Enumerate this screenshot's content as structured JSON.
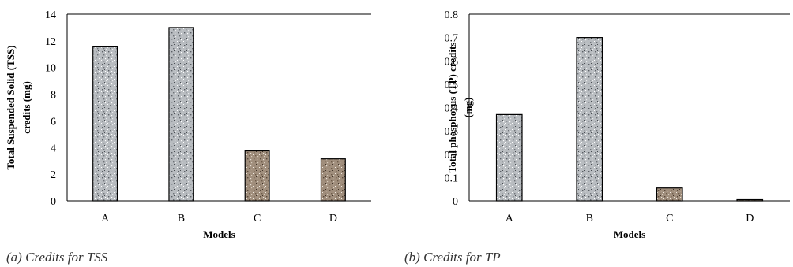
{
  "chart_data": [
    {
      "type": "bar",
      "categories": [
        "A",
        "B",
        "C",
        "D"
      ],
      "values": [
        11.55,
        13.0,
        3.75,
        3.15
      ],
      "xlabel": "Models",
      "ylabel": "Total Suspended Solid (TSS) credits (mg)",
      "ylabel_lines": [
        "Total Suspended Solid (TSS)",
        "credits  (mg)"
      ],
      "ylim": [
        0,
        14
      ],
      "yticks": [
        "0",
        "2",
        "4",
        "6",
        "8",
        "10",
        "12",
        "14"
      ],
      "grid": false,
      "caption": "(a) Credits for TSS",
      "bar_colors": [
        "#b8bcc0",
        "#b8bcc0",
        "#a08e7c",
        "#a08e7c"
      ]
    },
    {
      "type": "bar",
      "categories": [
        "A",
        "B",
        "C",
        "D"
      ],
      "values": [
        0.37,
        0.7,
        0.055,
        0.005
      ],
      "xlabel": "Models",
      "ylabel": "Total phosphorus (TP) credits (mg)",
      "ylabel_lines": [
        "Total phosphorus  (TP)  credits",
        "(mg)"
      ],
      "ylim": [
        0,
        0.8
      ],
      "yticks": [
        "0",
        "0.1",
        "0.2",
        "0.3",
        "0.4",
        "0.5",
        "0.6",
        "0.7",
        "0.8"
      ],
      "grid": false,
      "caption": "(b) Credits for TP",
      "bar_colors": [
        "#b8bcc0",
        "#b8bcc0",
        "#a08e7c",
        "#a08e7c"
      ]
    }
  ]
}
